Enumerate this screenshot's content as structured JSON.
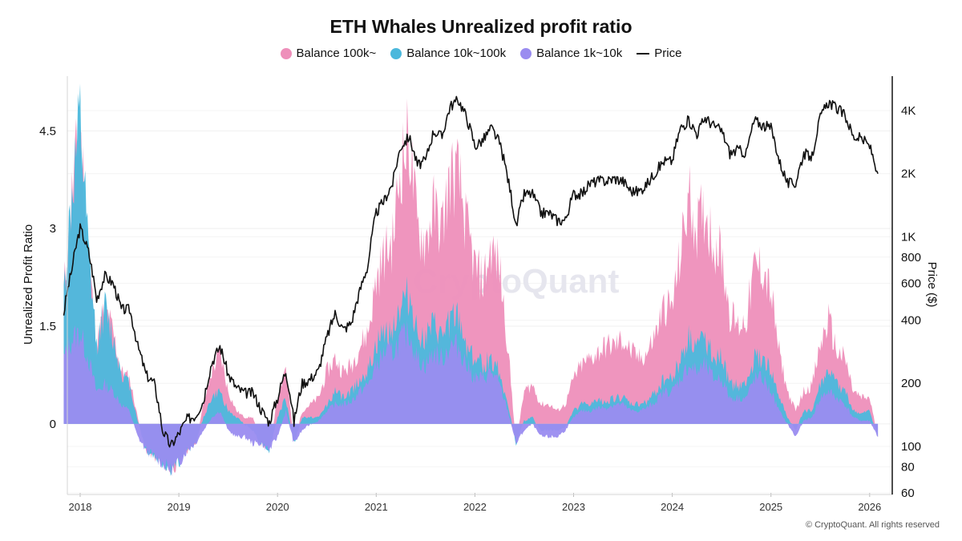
{
  "chart_data": {
    "type": "area",
    "title": "ETH Whales Unrealized profit ratio",
    "ylabel": "Unrealized Profit Ratio",
    "y2label": "Price ($)",
    "ylim": [
      -1.06,
      5.34
    ],
    "y2lim": [
      60,
      5840
    ],
    "y2scale": "log",
    "yticks": [
      "0",
      "1.5",
      "3",
      "4.5"
    ],
    "y2ticks": [
      "60",
      "80",
      "100",
      "200",
      "400",
      "600",
      "800",
      "1K",
      "2K",
      "4K"
    ],
    "xticks": [
      "2018",
      "2019",
      "2020",
      "2021",
      "2022",
      "2023",
      "2024",
      "2025",
      "2026"
    ],
    "grid": true,
    "legend_position": "top",
    "x": [
      "2017-11",
      "2017-12",
      "2018-01",
      "2018-02",
      "2018-03",
      "2018-04",
      "2018-05",
      "2018-06",
      "2018-07",
      "2018-08",
      "2018-09",
      "2018-10",
      "2018-11",
      "2018-12",
      "2019-01",
      "2019-02",
      "2019-03",
      "2019-04",
      "2019-05",
      "2019-06",
      "2019-07",
      "2019-08",
      "2019-09",
      "2019-10",
      "2019-11",
      "2019-12",
      "2020-01",
      "2020-02",
      "2020-03",
      "2020-04",
      "2020-05",
      "2020-06",
      "2020-07",
      "2020-08",
      "2020-09",
      "2020-10",
      "2020-11",
      "2020-12",
      "2021-01",
      "2021-02",
      "2021-03",
      "2021-04",
      "2021-05",
      "2021-06",
      "2021-07",
      "2021-08",
      "2021-09",
      "2021-10",
      "2021-11",
      "2021-12",
      "2022-01",
      "2022-02",
      "2022-03",
      "2022-04",
      "2022-05",
      "2022-06",
      "2022-07",
      "2022-08",
      "2022-09",
      "2022-10",
      "2022-11",
      "2022-12",
      "2023-01",
      "2023-02",
      "2023-03",
      "2023-04",
      "2023-05",
      "2023-06",
      "2023-07",
      "2023-08",
      "2023-09",
      "2023-10",
      "2023-11",
      "2023-12",
      "2024-01",
      "2024-02",
      "2024-03",
      "2024-04",
      "2024-05",
      "2024-06",
      "2024-07",
      "2024-08",
      "2024-09",
      "2024-10",
      "2024-11",
      "2024-12",
      "2025-01",
      "2025-02",
      "2025-03",
      "2025-04",
      "2025-05",
      "2025-06",
      "2025-07",
      "2025-08",
      "2025-09",
      "2025-10",
      "2025-11",
      "2025-12",
      "2026-01",
      "2026-02"
    ],
    "series": [
      {
        "name": "Balance 100k~",
        "color": "#ee8fba",
        "axis": "left",
        "values": [
          2.0,
          3.5,
          4.6,
          2.6,
          1.2,
          1.8,
          1.4,
          0.8,
          0.7,
          0.1,
          -0.4,
          -0.5,
          -0.6,
          -0.7,
          -0.6,
          -0.4,
          -0.3,
          0.3,
          0.8,
          1.1,
          0.5,
          0.2,
          0.1,
          0.1,
          -0.3,
          -0.4,
          0.4,
          0.9,
          -0.3,
          0.2,
          0.3,
          0.4,
          0.8,
          1.0,
          0.8,
          0.9,
          1.2,
          1.4,
          2.2,
          2.6,
          2.8,
          4.0,
          4.4,
          3.0,
          2.8,
          3.3,
          3.0,
          3.8,
          3.8,
          3.0,
          2.4,
          2.2,
          2.7,
          2.4,
          1.2,
          -0.3,
          0.5,
          0.6,
          0.3,
          0.3,
          0.2,
          0.3,
          0.7,
          0.9,
          1.0,
          1.1,
          1.2,
          1.2,
          1.3,
          1.1,
          1.0,
          1.1,
          1.4,
          1.8,
          1.8,
          2.6,
          3.5,
          3.0,
          3.3,
          2.8,
          2.6,
          1.7,
          1.5,
          1.6,
          2.4,
          2.4,
          2.0,
          1.1,
          0.5,
          0.2,
          0.5,
          0.6,
          1.2,
          1.6,
          1.1,
          1.0,
          0.5,
          0.4,
          0.4,
          -0.2
        ]
      },
      {
        "name": "Balance 10k~100k",
        "color": "#4bb8dc",
        "axis": "left",
        "values": [
          2.0,
          3.5,
          4.6,
          2.6,
          1.2,
          1.8,
          1.3,
          0.8,
          0.6,
          0.05,
          -0.4,
          -0.5,
          -0.6,
          -0.7,
          -0.6,
          -0.4,
          -0.3,
          0.1,
          0.4,
          0.5,
          0.2,
          0.1,
          0.0,
          -0.1,
          -0.3,
          -0.4,
          0.1,
          0.4,
          -0.3,
          0.1,
          0.1,
          0.1,
          0.3,
          0.5,
          0.4,
          0.5,
          0.7,
          0.8,
          1.2,
          1.4,
          1.5,
          1.8,
          2.0,
          1.4,
          1.3,
          1.5,
          1.3,
          1.6,
          1.6,
          1.2,
          1.0,
          0.9,
          1.0,
          0.8,
          0.3,
          -0.3,
          0.05,
          0.1,
          -0.1,
          -0.1,
          -0.1,
          -0.05,
          0.2,
          0.3,
          0.3,
          0.35,
          0.35,
          0.4,
          0.4,
          0.3,
          0.3,
          0.35,
          0.5,
          0.7,
          0.7,
          1.0,
          1.3,
          1.2,
          1.3,
          1.1,
          1.0,
          0.6,
          0.6,
          0.6,
          1.0,
          1.0,
          0.8,
          0.4,
          0.1,
          -0.1,
          0.2,
          0.2,
          0.6,
          0.8,
          0.6,
          0.5,
          0.2,
          0.15,
          0.2,
          -0.2
        ]
      },
      {
        "name": "Balance 1k~10k",
        "color": "#9a8cf0",
        "axis": "left",
        "values": [
          1.0,
          1.3,
          1.4,
          1.0,
          0.5,
          0.6,
          0.5,
          0.3,
          0.2,
          -0.2,
          -0.4,
          -0.5,
          -0.6,
          -0.7,
          -0.6,
          -0.4,
          -0.3,
          -0.1,
          0.1,
          0.2,
          -0.1,
          -0.2,
          -0.2,
          -0.3,
          -0.3,
          -0.4,
          -0.2,
          0.2,
          -0.3,
          -0.1,
          0.0,
          0.05,
          0.2,
          0.3,
          0.3,
          0.35,
          0.5,
          0.6,
          0.9,
          1.1,
          1.1,
          1.3,
          1.4,
          1.0,
          0.9,
          1.1,
          1.0,
          1.2,
          1.2,
          0.9,
          0.7,
          0.7,
          0.8,
          0.6,
          0.2,
          -0.3,
          -0.1,
          0.0,
          -0.2,
          -0.2,
          -0.2,
          -0.1,
          0.1,
          0.2,
          0.2,
          0.25,
          0.25,
          0.3,
          0.3,
          0.2,
          0.2,
          0.25,
          0.35,
          0.5,
          0.5,
          0.7,
          0.9,
          0.8,
          0.9,
          0.7,
          0.7,
          0.4,
          0.4,
          0.4,
          0.7,
          0.7,
          0.5,
          0.2,
          0.0,
          -0.2,
          0.05,
          0.1,
          0.4,
          0.5,
          0.4,
          0.3,
          0.1,
          0.05,
          0.05,
          -0.2
        ]
      },
      {
        "name": "Price",
        "color": "#111111",
        "axis": "right",
        "values": [
          430,
          700,
          1100,
          850,
          500,
          650,
          600,
          450,
          450,
          300,
          220,
          200,
          120,
          100,
          115,
          135,
          140,
          165,
          250,
          300,
          220,
          190,
          180,
          180,
          150,
          130,
          170,
          230,
          130,
          200,
          210,
          230,
          330,
          430,
          360,
          390,
          550,
          730,
          1300,
          1500,
          1800,
          2700,
          3000,
          2200,
          2300,
          3200,
          3000,
          4200,
          4500,
          3700,
          2700,
          2900,
          3300,
          2800,
          1900,
          1100,
          1600,
          1600,
          1300,
          1300,
          1200,
          1200,
          1600,
          1600,
          1800,
          1850,
          1850,
          1900,
          1850,
          1650,
          1650,
          1800,
          2050,
          2300,
          2300,
          3300,
          3600,
          3100,
          3700,
          3400,
          3200,
          2500,
          2600,
          2500,
          3600,
          3400,
          3300,
          2300,
          1800,
          1800,
          2500,
          2400,
          3700,
          4400,
          4100,
          3800,
          3000,
          2950,
          2700,
          2000
        ]
      }
    ]
  },
  "watermark": "CryptoQuant",
  "footer": "© CryptoQuant. All rights reserved"
}
